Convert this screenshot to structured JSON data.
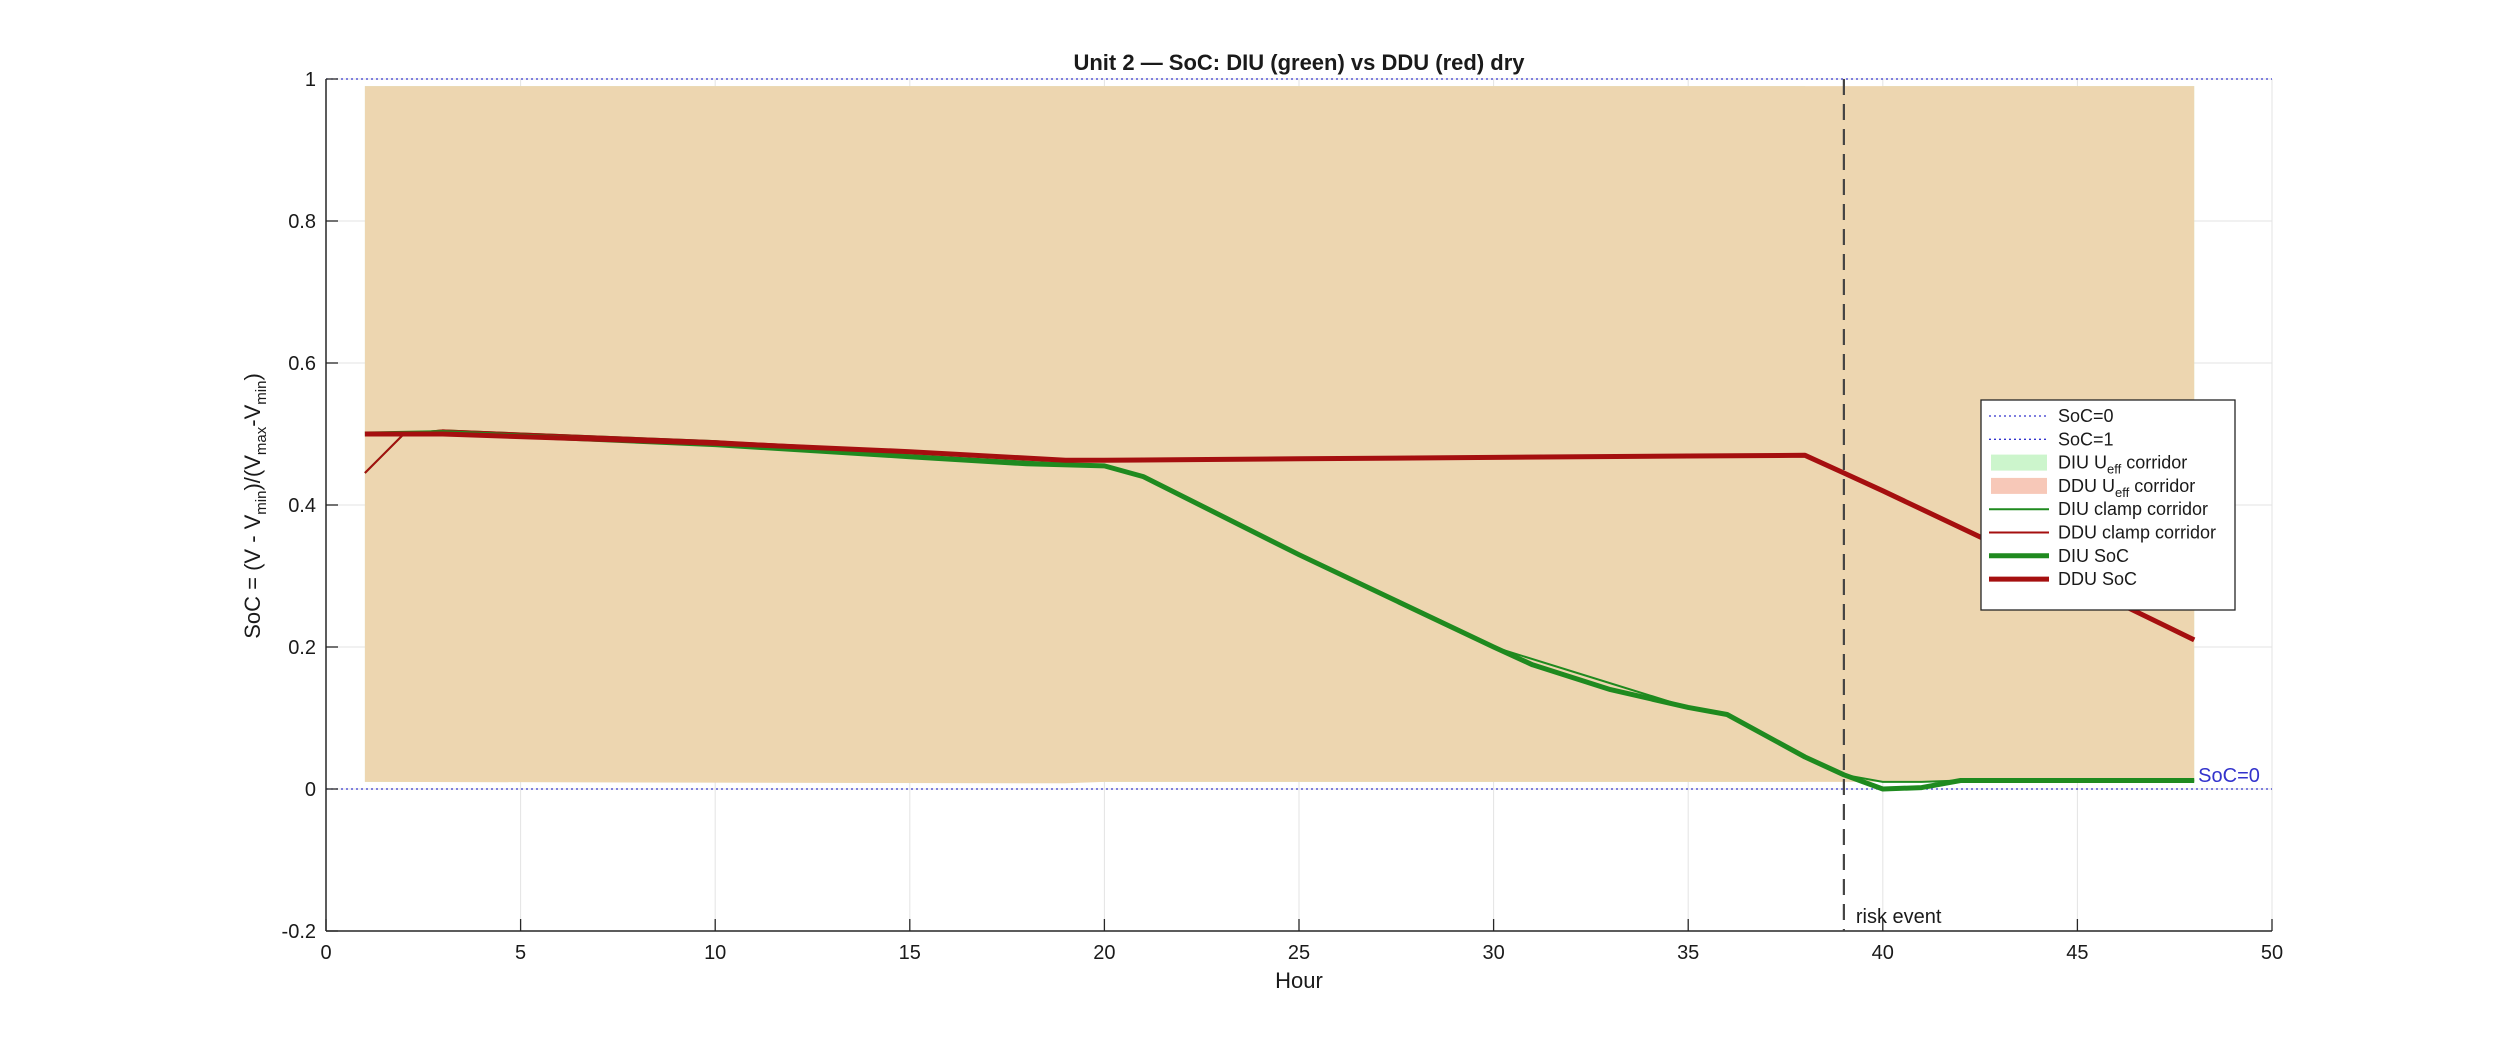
{
  "chart_data": {
    "type": "line",
    "title": "Unit 2 — SoC: DIU (green) vs DDU (red) dry",
    "xlabel": "Hour",
    "ylabel": "SoC = (V - V_min)/(V_max - V_min)",
    "ylabel_parts": {
      "prefix": "SoC = (V - V",
      "sub1": "min",
      "mid": ")/(V",
      "sub2": "max",
      "mid2": "-V",
      "sub3": "min",
      "suffix": ")"
    },
    "xlim": [
      0,
      50
    ],
    "ylim": [
      -0.2,
      1
    ],
    "xticks": [
      0,
      5,
      10,
      15,
      20,
      25,
      30,
      35,
      40,
      45,
      50
    ],
    "yticks": [
      -0.2,
      0,
      0.2,
      0.4,
      0.6,
      0.8,
      1
    ],
    "ytick_labels": [
      "-0.2",
      "0",
      "0.2",
      "0.4",
      "0.6",
      "0.8",
      "1"
    ],
    "grid": true,
    "legend_position": "right",
    "colors": {
      "diu": "#1f8a1f",
      "ddu": "#a50f0f",
      "diu_corridor": "#ccf5cc",
      "ddu_corridor": "#f7c8b8",
      "overlap": "#edd6b0",
      "soc_line": "#3333cc",
      "event": "#444444"
    },
    "series": [
      {
        "name": "DIU U_eff corridor",
        "kind": "band",
        "x": [
          1,
          19,
          20,
          38,
          39,
          40,
          48
        ],
        "lower": [
          0.01,
          0.01,
          0.01,
          0.01,
          0.04,
          0.01,
          0.01
        ],
        "upper": [
          0.99,
          0.99,
          0.99,
          0.99,
          0.96,
          0.99,
          0.99
        ]
      },
      {
        "name": "DDU U_eff corridor",
        "kind": "band",
        "x": [
          1,
          19,
          20,
          38,
          39,
          40,
          48
        ],
        "lower": [
          0.01,
          0.008,
          0.01,
          0.01,
          0.01,
          0.01,
          0.01
        ],
        "upper": [
          0.99,
          0.99,
          0.99,
          0.99,
          0.99,
          0.99,
          0.99
        ]
      },
      {
        "name": "DIU clamp corridor",
        "kind": "line",
        "x": [
          1,
          2,
          3,
          10,
          15,
          19,
          20,
          21,
          25,
          30,
          35,
          36,
          38,
          39,
          40,
          41,
          42,
          48
        ],
        "y": [
          0.445,
          0.5,
          0.505,
          0.49,
          0.47,
          0.458,
          0.455,
          0.44,
          0.33,
          0.2,
          0.115,
          0.105,
          0.045,
          0.02,
          0.01,
          0.01,
          0.012,
          0.012
        ]
      },
      {
        "name": "DDU clamp corridor",
        "kind": "line",
        "x": [
          1,
          2,
          3,
          10,
          15,
          19,
          20,
          25,
          30,
          35,
          38,
          39,
          40,
          45,
          48
        ],
        "y": [
          0.445,
          0.5,
          0.505,
          0.49,
          0.475,
          0.463,
          0.463,
          0.465,
          0.467,
          0.469,
          0.47,
          0.445,
          0.42,
          0.29,
          0.21
        ]
      },
      {
        "name": "DIU SoC",
        "kind": "line",
        "x": [
          1,
          3,
          10,
          15,
          18,
          20,
          21,
          25,
          30,
          31,
          33,
          35,
          36,
          38,
          39,
          40,
          41,
          42,
          48
        ],
        "y": [
          0.5,
          0.502,
          0.485,
          0.468,
          0.458,
          0.455,
          0.44,
          0.33,
          0.2,
          0.175,
          0.14,
          0.115,
          0.105,
          0.045,
          0.02,
          0.0,
          0.002,
          0.012,
          0.012
        ]
      },
      {
        "name": "DDU SoC",
        "kind": "line",
        "x": [
          1,
          3,
          10,
          15,
          19,
          20,
          25,
          30,
          35,
          38,
          39,
          40,
          45,
          48
        ],
        "y": [
          0.5,
          0.5,
          0.487,
          0.475,
          0.463,
          0.463,
          0.465,
          0.467,
          0.469,
          0.47,
          0.445,
          0.42,
          0.29,
          0.21
        ]
      }
    ],
    "reference_lines": [
      {
        "name": "SoC=0",
        "y": 0
      },
      {
        "name": "SoC=1",
        "y": 1
      }
    ],
    "soc0_label": "SoC=0",
    "event": {
      "x": 39,
      "label": "risk event"
    },
    "legend": [
      {
        "label": "SoC=0",
        "style": "dotted"
      },
      {
        "label": "SoC=1",
        "style": "dotted"
      },
      {
        "label_main": "DIU U",
        "label_sub": "eff",
        "label_rest": " corridor",
        "style": "patch-green"
      },
      {
        "label_main": "DDU U",
        "label_sub": "eff",
        "label_rest": " corridor",
        "style": "patch-red"
      },
      {
        "label": "DIU clamp corridor",
        "style": "thin-green"
      },
      {
        "label": "DDU clamp corridor",
        "style": "thin-red"
      },
      {
        "label": "DIU SoC",
        "style": "thick-green"
      },
      {
        "label": "DDU SoC",
        "style": "thick-red"
      }
    ]
  }
}
